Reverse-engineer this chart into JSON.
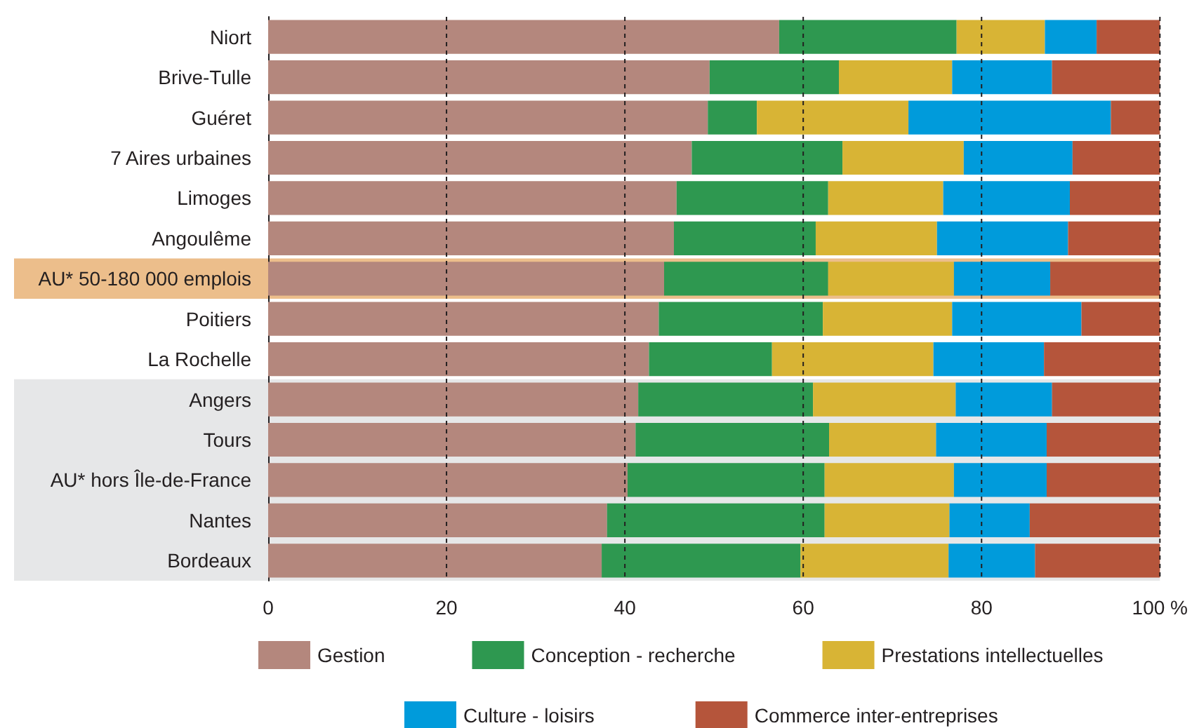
{
  "chart_data": {
    "type": "bar",
    "orientation": "horizontal",
    "stacked": true,
    "categories": [
      "Niort",
      "Brive-Tulle",
      "Guéret",
      "7 Aires urbaines",
      "Limoges",
      "Angoulême",
      "AU* 50-180 000 emplois",
      "Poitiers",
      "La Rochelle",
      "Angers",
      "Tours",
      "AU* hors Île-de-France",
      "Nantes",
      "Bordeaux"
    ],
    "series": [
      {
        "name": "Gestion",
        "color": "#b4877d",
        "values": [
          57.3,
          49.5,
          49.3,
          47.5,
          45.8,
          45.5,
          44.4,
          43.8,
          42.7,
          41.5,
          41.2,
          40.3,
          38.0,
          37.4
        ]
      },
      {
        "name": "Conception - recherche",
        "color": "#2e9850",
        "values": [
          19.9,
          14.5,
          5.5,
          16.9,
          17.0,
          15.9,
          18.4,
          18.4,
          13.8,
          19.6,
          21.7,
          22.1,
          24.4,
          22.3
        ]
      },
      {
        "name": "Prestations intellectuelles",
        "color": "#d8b435",
        "values": [
          9.9,
          12.7,
          17.0,
          13.6,
          12.9,
          13.6,
          14.1,
          14.5,
          18.1,
          16.0,
          12.0,
          14.5,
          14.0,
          16.6
        ]
      },
      {
        "name": "Culture - loisirs",
        "color": "#009bdb",
        "values": [
          5.8,
          11.2,
          22.7,
          12.2,
          14.2,
          14.7,
          10.8,
          14.5,
          12.4,
          10.8,
          12.4,
          10.4,
          9.0,
          9.7
        ]
      },
      {
        "name": "Commerce inter-entreprises",
        "color": "#b5553b",
        "values": [
          7.1,
          12.1,
          5.5,
          9.8,
          10.1,
          10.3,
          12.3,
          8.8,
          13.0,
          12.1,
          12.7,
          12.7,
          14.6,
          14.0
        ]
      }
    ],
    "xlim": [
      0,
      100
    ],
    "xticks": [
      0,
      20,
      40,
      60,
      80,
      {
        "value": 100,
        "label": "100 %"
      }
    ],
    "grid": "x",
    "legend": "bottom",
    "bands": [
      {
        "axis": "y",
        "from": "AU* 50-180 000 emplois",
        "to": "AU* 50-180 000 emplois",
        "color": "#ecbe8b"
      },
      {
        "axis": "y",
        "from": "Angers",
        "to": "Bordeaux",
        "color": "#e6e7e8"
      }
    ]
  }
}
